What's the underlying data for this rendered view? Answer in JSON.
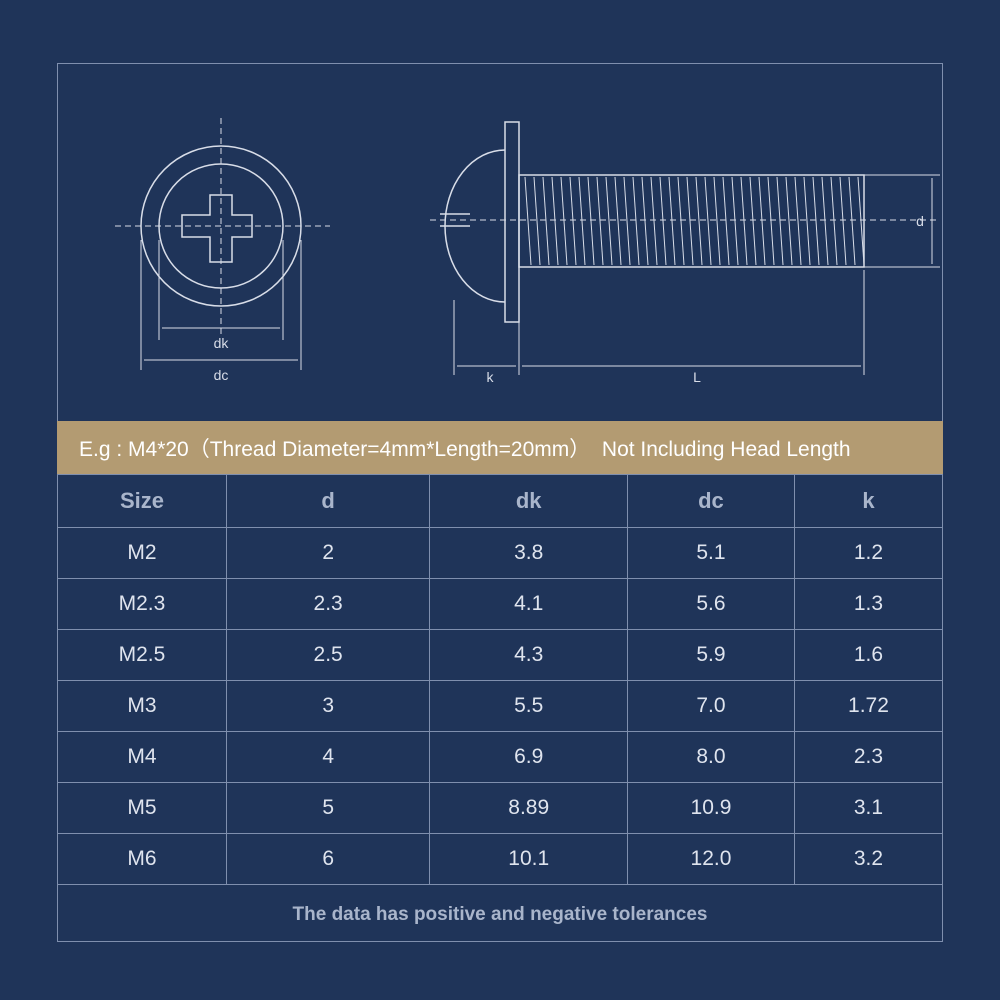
{
  "diagram": {
    "labels": {
      "dk": "dk",
      "dc": "dc",
      "k": "k",
      "L": "L",
      "d": "d"
    }
  },
  "banner": {
    "text": "E.g : M4*20（Thread Diameter=4mm*Length=20mm）  Not Including Head Length"
  },
  "table": {
    "headers": [
      "Size",
      "d",
      "dk",
      "dc",
      "k"
    ],
    "rows": [
      [
        "M2",
        "2",
        "3.8",
        "5.1",
        "1.2"
      ],
      [
        "M2.3",
        "2.3",
        "4.1",
        "5.6",
        "1.3"
      ],
      [
        "M2.5",
        "2.5",
        "4.3",
        "5.9",
        "1.6"
      ],
      [
        "M3",
        "3",
        "5.5",
        "7.0",
        "1.72"
      ],
      [
        "M4",
        "4",
        "6.9",
        "8.0",
        "2.3"
      ],
      [
        "M5",
        "5",
        "8.89",
        "10.9",
        "3.1"
      ],
      [
        "M6",
        "6",
        "10.1",
        "12.0",
        "3.2"
      ]
    ]
  },
  "footer": {
    "text": "The data has positive and negative tolerances"
  },
  "colors": {
    "background": "#1f3459",
    "banner": "#b39b72",
    "line": "#7f8fae"
  }
}
